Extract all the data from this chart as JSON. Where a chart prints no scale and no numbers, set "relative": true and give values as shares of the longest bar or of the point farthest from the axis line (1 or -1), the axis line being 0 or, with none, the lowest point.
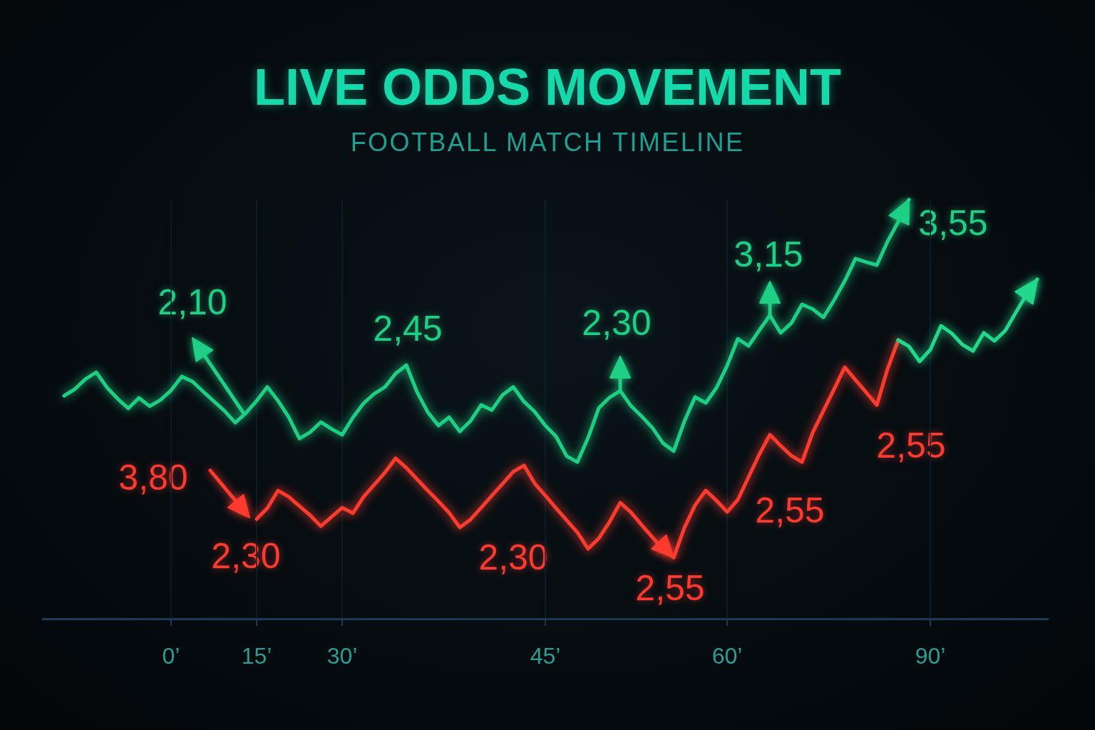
{
  "chart_data": {
    "type": "line",
    "title": "LIVE ODDS MOVEMENT",
    "subtitle": "FOOTBALL MATCH TIMELINE",
    "relative": true,
    "grid": "x",
    "marker": "none",
    "line_style": "solid",
    "tick_labels": "x",
    "categories": [
      null,
      null,
      null,
      null,
      null,
      null,
      null,
      null,
      null,
      null,
      null,
      null,
      "0’",
      null,
      null,
      null,
      null,
      null,
      null,
      null,
      "15’",
      null,
      null,
      null,
      null,
      null,
      null,
      null,
      "30’",
      null,
      null,
      null,
      null,
      null,
      null,
      null,
      null,
      null,
      null,
      null,
      null,
      null,
      null,
      null,
      null,
      null,
      null,
      "45’",
      null,
      null,
      null,
      null,
      null,
      null,
      null,
      null,
      null,
      null,
      null,
      null,
      null,
      null,
      null,
      null,
      "60’",
      null,
      null,
      null,
      null,
      null,
      null,
      null,
      null,
      null,
      null,
      null,
      null,
      null,
      null,
      null,
      null,
      null,
      null,
      "90’",
      null,
      null,
      null,
      null,
      null,
      null,
      null,
      null,
      null,
      null,
      null
    ],
    "series": [
      {
        "color": "#1fcf85",
        "values": [
          null,
          null,
          0.532,
          0.548,
          0.572,
          0.588,
          0.552,
          0.525,
          0.502,
          0.527,
          0.507,
          0.522,
          0.545,
          0.578,
          0.566,
          0.542,
          0.519,
          0.496,
          0.468,
          0.491,
          0.52,
          0.553,
          0.52,
          0.481,
          0.43,
          0.445,
          0.469,
          0.453,
          0.439,
          0.48,
          0.514,
          0.537,
          0.553,
          0.585,
          0.605,
          0.541,
          0.493,
          0.461,
          0.481,
          0.447,
          0.472,
          0.51,
          0.498,
          0.534,
          0.553,
          0.518,
          0.494,
          0.461,
          0.435,
          0.388,
          0.374,
          0.432,
          0.503,
          0.528,
          0.544,
          0.508,
          0.483,
          0.456,
          0.419,
          0.4,
          0.471,
          0.529,
          0.515,
          0.551,
          0.604,
          0.668,
          0.651,
          0.688,
          0.724,
          0.682,
          0.705,
          0.75,
          0.739,
          0.719,
          0.76,
          0.806,
          0.859,
          0.851,
          0.844,
          0.9,
          0.947,
          1.0,
          null,
          null,
          null,
          null,
          null,
          null,
          null,
          null,
          null,
          null,
          null,
          null,
          null
        ]
      },
      {
        "color": "#ff3b2f",
        "values": [
          null,
          null,
          null,
          null,
          null,
          null,
          null,
          null,
          null,
          null,
          null,
          null,
          null,
          null,
          null,
          null,
          null,
          null,
          null,
          null,
          0.238,
          0.264,
          0.306,
          0.291,
          0.269,
          0.247,
          0.221,
          0.243,
          0.265,
          0.252,
          0.291,
          0.32,
          0.349,
          0.383,
          0.36,
          0.333,
          0.306,
          0.28,
          0.253,
          0.218,
          0.237,
          0.265,
          0.294,
          0.322,
          0.351,
          0.366,
          0.323,
          0.294,
          0.264,
          0.235,
          0.206,
          0.167,
          0.192,
          0.231,
          0.277,
          0.254,
          0.224,
          0.195,
          0.166,
          0.146,
          0.217,
          0.271,
          0.306,
          0.282,
          0.255,
          0.284,
          0.338,
          0.392,
          0.439,
          0.413,
          0.389,
          0.374,
          0.444,
          0.496,
          0.548,
          0.6,
          0.57,
          0.54,
          0.51,
          0.596,
          0.665,
          null,
          null,
          null,
          null,
          null,
          null,
          null,
          null,
          null,
          null,
          null,
          null,
          null,
          null
        ]
      },
      {
        "color": "#22d88a",
        "values": [
          null,
          null,
          null,
          null,
          null,
          null,
          null,
          null,
          null,
          null,
          null,
          null,
          null,
          null,
          null,
          null,
          null,
          null,
          null,
          null,
          null,
          null,
          null,
          null,
          null,
          null,
          null,
          null,
          null,
          null,
          null,
          null,
          null,
          null,
          null,
          null,
          null,
          null,
          null,
          null,
          null,
          null,
          null,
          null,
          null,
          null,
          null,
          null,
          null,
          null,
          null,
          null,
          null,
          null,
          null,
          null,
          null,
          null,
          null,
          null,
          null,
          null,
          null,
          null,
          null,
          null,
          null,
          null,
          null,
          null,
          null,
          null,
          null,
          null,
          null,
          null,
          null,
          null,
          null,
          null,
          0.665,
          0.65,
          0.614,
          0.642,
          0.699,
          0.681,
          0.654,
          0.639,
          0.682,
          0.663,
          0.687,
          0.731,
          0.774,
          0.81,
          null
        ]
      }
    ],
    "annotations": [
      "2,10",
      "2,45",
      "2,30",
      "3,15",
      "3,55",
      "3,80",
      "2,30",
      "2,30",
      "2,55",
      "2,55",
      "2,55"
    ]
  }
}
